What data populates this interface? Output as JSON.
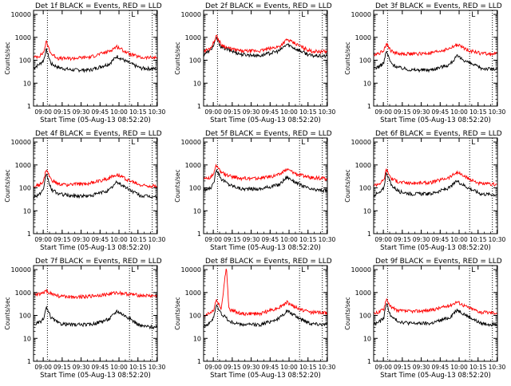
{
  "figure": {
    "tick_labels_y": [
      "1",
      "10",
      "100",
      "1000",
      "10000"
    ],
    "tick_labels_x": [
      "09:00",
      "09:15",
      "09:30",
      "09:45",
      "10:00",
      "10:15",
      "10:30"
    ],
    "ylabel": "Counts/sec",
    "xlabel": "Start Time (05-Aug-13 08:52:20)",
    "marker_label": "L",
    "colors": {
      "events": "#000000",
      "lld": "#ff0000",
      "axes": "#000000"
    }
  },
  "chart_data": [
    {
      "type": "line",
      "title": "Det 1f BLACK = Events, RED = LLD",
      "x_range_min": [
        0,
        98
      ],
      "ylim": [
        1,
        15000
      ],
      "yscale": "log",
      "markers_min": [
        11,
        76,
        94
      ],
      "keypoints_min": [
        0,
        5,
        8,
        10,
        14,
        20,
        30,
        45,
        60,
        66,
        75,
        85,
        98
      ],
      "series": [
        {
          "name": "Events",
          "values": [
            45,
            70,
            100,
            300,
            70,
            48,
            38,
            38,
            70,
            150,
            80,
            45,
            42
          ]
        },
        {
          "name": "LLD",
          "values": [
            130,
            160,
            220,
            650,
            190,
            120,
            120,
            140,
            250,
            400,
            200,
            130,
            130
          ]
        }
      ]
    },
    {
      "type": "line",
      "title": "Det 2f BLACK = Events, RED = LLD",
      "x_range_min": [
        0,
        98
      ],
      "ylim": [
        1,
        15000
      ],
      "yscale": "log",
      "markers_min": [
        11,
        76,
        94
      ],
      "keypoints_min": [
        0,
        5,
        8,
        10,
        14,
        20,
        30,
        45,
        60,
        66,
        75,
        85,
        98
      ],
      "series": [
        {
          "name": "Events",
          "values": [
            180,
            260,
            450,
            950,
            380,
            280,
            180,
            160,
            260,
            500,
            280,
            160,
            150
          ]
        },
        {
          "name": "LLD",
          "values": [
            250,
            320,
            600,
            1200,
            480,
            330,
            250,
            260,
            400,
            800,
            450,
            250,
            240
          ]
        }
      ]
    },
    {
      "type": "line",
      "title": "Det 3f BLACK = Events, RED = LLD",
      "x_range_min": [
        0,
        98
      ],
      "ylim": [
        1,
        15000
      ],
      "yscale": "log",
      "markers_min": [
        11,
        76,
        94
      ],
      "keypoints_min": [
        0,
        5,
        8,
        10,
        14,
        20,
        30,
        45,
        60,
        66,
        75,
        85,
        98
      ],
      "series": [
        {
          "name": "Events",
          "values": [
            45,
            55,
            80,
            250,
            70,
            48,
            38,
            38,
            65,
            150,
            80,
            45,
            40
          ]
        },
        {
          "name": "LLD",
          "values": [
            180,
            210,
            280,
            550,
            250,
            190,
            190,
            200,
            320,
            480,
            280,
            200,
            190
          ]
        }
      ]
    },
    {
      "type": "line",
      "title": "Det 4f BLACK = Events, RED = LLD",
      "x_range_min": [
        0,
        98
      ],
      "ylim": [
        1,
        15000
      ],
      "yscale": "log",
      "markers_min": [
        11,
        76,
        94
      ],
      "keypoints_min": [
        0,
        5,
        8,
        10,
        14,
        20,
        30,
        45,
        60,
        66,
        75,
        85,
        98
      ],
      "series": [
        {
          "name": "Events",
          "values": [
            40,
            55,
            80,
            450,
            85,
            55,
            45,
            45,
            80,
            180,
            90,
            45,
            40
          ]
        },
        {
          "name": "LLD",
          "values": [
            110,
            140,
            200,
            650,
            220,
            140,
            140,
            160,
            270,
            400,
            220,
            130,
            120
          ]
        }
      ]
    },
    {
      "type": "line",
      "title": "Det 5f BLACK = Events, RED = LLD",
      "x_range_min": [
        0,
        98
      ],
      "ylim": [
        1,
        15000
      ],
      "yscale": "log",
      "markers_min": [
        11,
        76,
        94
      ],
      "keypoints_min": [
        0,
        5,
        8,
        10,
        14,
        20,
        30,
        45,
        60,
        66,
        75,
        85,
        98
      ],
      "series": [
        {
          "name": "Events",
          "values": [
            75,
            95,
            150,
            700,
            250,
            140,
            90,
            90,
            140,
            300,
            150,
            85,
            75
          ]
        },
        {
          "name": "LLD",
          "values": [
            250,
            290,
            380,
            950,
            480,
            330,
            260,
            260,
            380,
            650,
            380,
            280,
            260
          ]
        }
      ]
    },
    {
      "type": "line",
      "title": "Det 6f BLACK = Events, RED = LLD",
      "x_range_min": [
        0,
        98
      ],
      "ylim": [
        1,
        15000
      ],
      "yscale": "log",
      "markers_min": [
        11,
        76,
        94
      ],
      "keypoints_min": [
        0,
        5,
        8,
        10,
        14,
        20,
        30,
        45,
        60,
        66,
        75,
        85,
        98
      ],
      "series": [
        {
          "name": "Events",
          "values": [
            50,
            60,
            100,
            500,
            130,
            70,
            55,
            55,
            100,
            200,
            100,
            55,
            50
          ]
        },
        {
          "name": "LLD",
          "values": [
            130,
            160,
            220,
            650,
            260,
            180,
            160,
            170,
            290,
            480,
            250,
            150,
            140
          ]
        }
      ]
    },
    {
      "type": "line",
      "title": "Det 7f BLACK = Events, RED = LLD",
      "x_range_min": [
        0,
        98
      ],
      "ylim": [
        1,
        15000
      ],
      "yscale": "log",
      "markers_min": [
        11,
        76,
        94
      ],
      "keypoints_min": [
        0,
        5,
        8,
        10,
        14,
        20,
        30,
        45,
        60,
        66,
        75,
        85,
        98
      ],
      "series": [
        {
          "name": "Events",
          "values": [
            40,
            50,
            70,
            220,
            80,
            45,
            40,
            40,
            70,
            160,
            80,
            35,
            30
          ]
        },
        {
          "name": "LLD",
          "values": [
            800,
            850,
            950,
            1200,
            900,
            700,
            650,
            700,
            850,
            1000,
            850,
            750,
            700
          ]
        }
      ]
    },
    {
      "type": "line",
      "title": "Det 8f BLACK = Events, RED = LLD",
      "x_range_min": [
        0,
        98
      ],
      "ylim": [
        1,
        15000
      ],
      "yscale": "log",
      "markers_min": [
        11,
        76,
        94
      ],
      "keypoints_min": [
        0,
        5,
        8,
        10,
        14,
        18,
        20,
        30,
        45,
        60,
        66,
        75,
        85,
        98
      ],
      "series": [
        {
          "name": "Events",
          "values": [
            35,
            45,
            90,
            280,
            120,
            80,
            55,
            40,
            40,
            75,
            160,
            80,
            45,
            40
          ]
        },
        {
          "name": "LLD",
          "values": [
            100,
            130,
            180,
            500,
            200,
            15000,
            190,
            120,
            120,
            230,
            380,
            200,
            140,
            130
          ]
        }
      ]
    },
    {
      "type": "line",
      "title": "Det 9f BLACK = Events, RED = LLD",
      "x_range_min": [
        0,
        98
      ],
      "ylim": [
        1,
        15000
      ],
      "yscale": "log",
      "markers_min": [
        11,
        76,
        94
      ],
      "keypoints_min": [
        0,
        5,
        8,
        10,
        14,
        20,
        30,
        45,
        60,
        66,
        75,
        85,
        98
      ],
      "series": [
        {
          "name": "Events",
          "values": [
            40,
            55,
            80,
            350,
            85,
            55,
            45,
            45,
            80,
            180,
            90,
            45,
            40
          ]
        },
        {
          "name": "LLD",
          "values": [
            120,
            150,
            200,
            550,
            220,
            160,
            150,
            170,
            270,
            400,
            220,
            140,
            130
          ]
        }
      ]
    }
  ]
}
